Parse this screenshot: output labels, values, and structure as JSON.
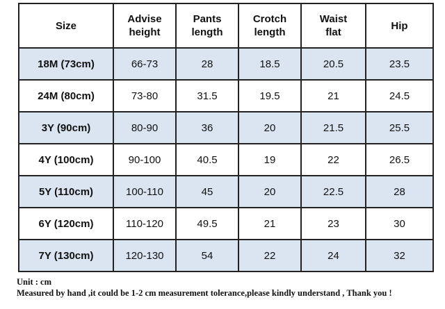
{
  "table": {
    "header": [
      "Size",
      "Advise\nheight",
      "Pants\nlength",
      "Crotch\nlength",
      "Waist\nflat",
      "Hip"
    ],
    "rows": [
      [
        "18M (73cm)",
        "66-73",
        "28",
        "18.5",
        "20.5",
        "23.5"
      ],
      [
        "24M (80cm)",
        "73-80",
        "31.5",
        "19.5",
        "21",
        "24.5"
      ],
      [
        "3Y (90cm)",
        "80-90",
        "36",
        "20",
        "21.5",
        "25.5"
      ],
      [
        "4Y (100cm)",
        "90-100",
        "40.5",
        "19",
        "22",
        "26.5"
      ],
      [
        "5Y (110cm)",
        "100-110",
        "45",
        "20",
        "22.5",
        "28"
      ],
      [
        "6Y (120cm)",
        "110-120",
        "49.5",
        "21",
        "23",
        "30"
      ],
      [
        "7Y (130cm)",
        "120-130",
        "54",
        "22",
        "24",
        "32"
      ]
    ]
  },
  "notes": [
    "Unit : cm",
    "Measured by hand ,it could be 1-2 cm measurement tolerance,please kindly understand , Thank you !"
  ]
}
